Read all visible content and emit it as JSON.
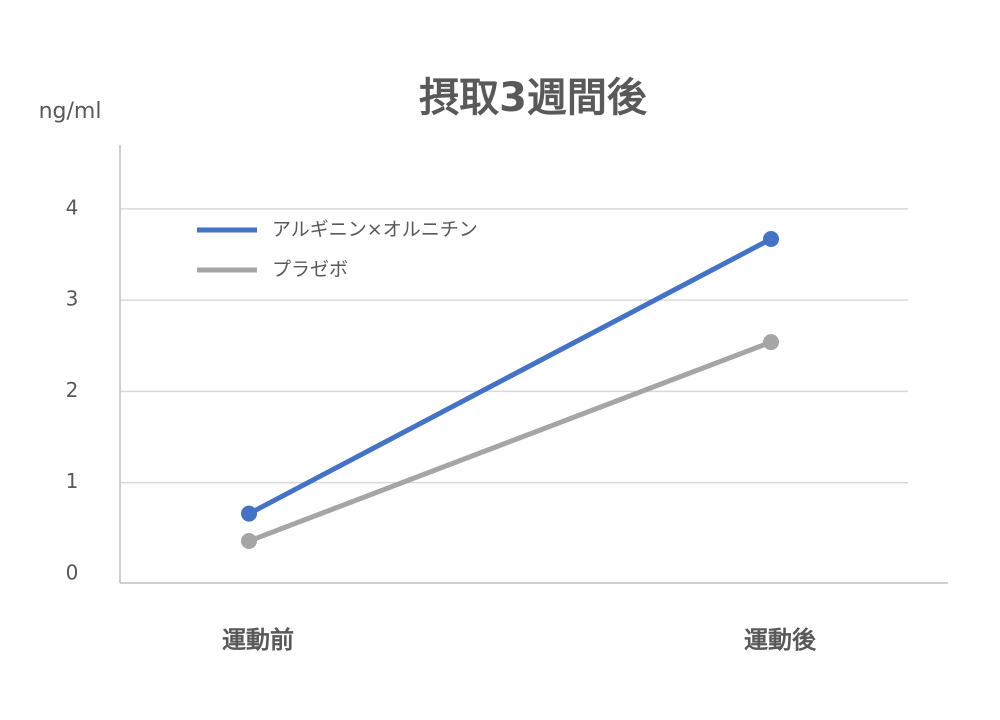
{
  "chart_data": {
    "type": "line",
    "title": "摂取3週間後",
    "y_label": "ng/ml",
    "categories": [
      "運動前",
      "運動後"
    ],
    "series": [
      {
        "name": "アルギニン×オルニチン",
        "color": "#4472c4",
        "values": [
          0.66,
          3.67
        ]
      },
      {
        "name": "プラゼボ",
        "color": "#a5a5a5",
        "values": [
          0.36,
          2.54
        ]
      }
    ],
    "ylim": [
      -0.1,
      4.7
    ],
    "yticks": [
      0,
      1,
      2,
      3,
      4
    ],
    "grid": true,
    "legend": "top-left"
  }
}
